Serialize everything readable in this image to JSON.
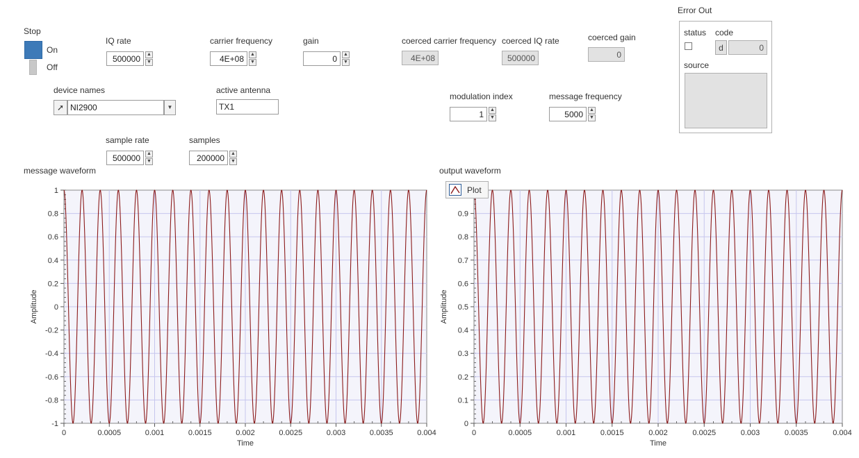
{
  "stop": {
    "label": "Stop",
    "on_label": "On",
    "off_label": "Off"
  },
  "controls": {
    "iq_rate": {
      "label": "IQ rate",
      "value": "500000"
    },
    "carrier_frequency": {
      "label": "carrier frequency",
      "value": "4E+08"
    },
    "gain": {
      "label": "gain",
      "value": "0"
    },
    "coerced_carrier_frequency": {
      "label": "coerced carrier frequency",
      "value": "4E+08"
    },
    "coerced_iq_rate": {
      "label": "coerced IQ rate",
      "value": "500000"
    },
    "coerced_gain": {
      "label": "coerced gain",
      "value": "0"
    },
    "device_names": {
      "label": "device names",
      "value": "NI2900"
    },
    "active_antenna": {
      "label": "active antenna",
      "value": "TX1"
    },
    "modulation_index": {
      "label": "modulation index",
      "value": "1"
    },
    "message_frequency": {
      "label": "message frequency",
      "value": "5000"
    },
    "sample_rate": {
      "label": "sample rate",
      "value": "500000"
    },
    "samples": {
      "label": "samples",
      "value": "200000"
    }
  },
  "error_out": {
    "title": "Error Out",
    "status_label": "status",
    "code_label": "code",
    "code_radix": "d",
    "code_value": "0",
    "source_label": "source"
  },
  "charts": {
    "message": {
      "title": "message waveform"
    },
    "output": {
      "title": "output waveform",
      "legend_plot": "Plot"
    }
  },
  "colors": {
    "stop_on": "#3d7ab8",
    "plot_line": "#8b1a1a",
    "plot_bg": "#f4f4fb",
    "grid": "#c6c6ee"
  },
  "chart_data": [
    {
      "type": "line",
      "title": "message waveform",
      "xlabel": "Time",
      "ylabel": "Amplitude",
      "xlim": [
        0,
        0.004
      ],
      "ylim": [
        -1,
        1
      ],
      "x_ticks": [
        "0",
        "0.0005",
        "0.001",
        "0.0015",
        "0.002",
        "0.0025",
        "0.003",
        "0.0035",
        "0.004"
      ],
      "y_ticks": [
        "1",
        "0.8",
        "0.6",
        "0.4",
        "0.2",
        "0",
        "-0.2",
        "-0.4",
        "-0.6",
        "-0.8",
        "-1"
      ],
      "series": [
        {
          "function": "cos",
          "amplitude": 1,
          "offset": 0,
          "frequency_hz": 5000
        }
      ]
    },
    {
      "type": "line",
      "title": "output waveform",
      "xlabel": "Time",
      "ylabel": "Amplitude",
      "xlim": [
        0,
        0.004
      ],
      "ylim": [
        0,
        1
      ],
      "x_ticks": [
        "0",
        "0.0005",
        "0.001",
        "0.0015",
        "0.002",
        "0.0025",
        "0.003",
        "0.0035",
        "0.004"
      ],
      "y_ticks": [
        "0.9",
        "0.8",
        "0.7",
        "0.6",
        "0.5",
        "0.4",
        "0.3",
        "0.2",
        "0.1",
        "0"
      ],
      "series": [
        {
          "name": "Plot",
          "function": "cos",
          "amplitude": 0.5,
          "offset": 0.5,
          "frequency_hz": 5000
        }
      ]
    }
  ]
}
